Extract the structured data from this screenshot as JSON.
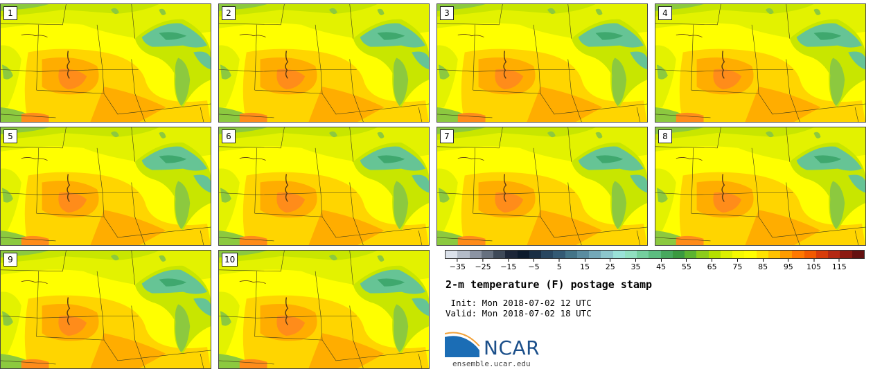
{
  "colors": {
    "base": "#ffff00",
    "warm": "#ffd500",
    "hot": "#ffad00",
    "hotter": "#ff8c1a",
    "cool": "#e3f200",
    "cooler": "#c8e600",
    "green": "#8cc93f",
    "lake": "#66c495",
    "lake_dark": "#3fa86e",
    "river": "#5a3a14",
    "border": "#3a3a1a"
  },
  "panels": [
    {
      "label": "1"
    },
    {
      "label": "2"
    },
    {
      "label": "3"
    },
    {
      "label": "4"
    },
    {
      "label": "5"
    },
    {
      "label": "6"
    },
    {
      "label": "7"
    },
    {
      "label": "8"
    },
    {
      "label": "9"
    },
    {
      "label": "10"
    }
  ],
  "colorbar": {
    "colors": [
      "#dbe1ea",
      "#b4bcc8",
      "#8c94a3",
      "#66707f",
      "#3e4958",
      "#1c2638",
      "#0c1a2c",
      "#1a2e44",
      "#284660",
      "#345a74",
      "#447488",
      "#5a8ca0",
      "#74a8b8",
      "#8cc6cc",
      "#9ae2d8",
      "#90e0c0",
      "#74cf9e",
      "#5cbd80",
      "#47a95e",
      "#3a9a40",
      "#5cb430",
      "#8ccc1c",
      "#b4e000",
      "#dcf000",
      "#f5fa00",
      "#ffff00",
      "#ffe300",
      "#ffc200",
      "#ff9c00",
      "#ff7800",
      "#f25a00",
      "#d83c0a",
      "#b42812",
      "#8c1a12",
      "#641010"
    ],
    "ticks": [
      "−35",
      "−25",
      "−15",
      "−5",
      "5",
      "15",
      "25",
      "35",
      "45",
      "55",
      "65",
      "75",
      "85",
      "95",
      "105",
      "115"
    ],
    "range": [
      -40,
      125
    ]
  },
  "title": "2-m temperature (F) postage stamp",
  "init_line": " Init: Mon 2018-07-02 12 UTC",
  "valid_line": "Valid: Mon 2018-07-02 18 UTC",
  "logo_text": "NCAR",
  "website": "ensemble.ucar.edu"
}
